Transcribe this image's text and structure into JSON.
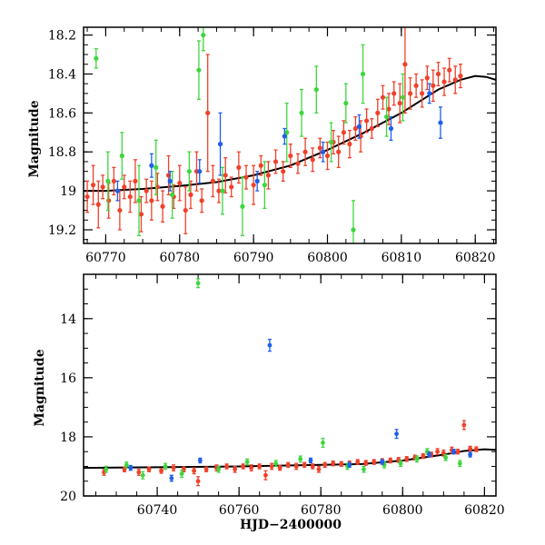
{
  "chart_data": [
    {
      "type": "scatter",
      "panel": "top",
      "xlabel": "",
      "ylabel": "Magnitude",
      "xlim": [
        60767,
        60822.8
      ],
      "ylim": [
        19.27,
        18.16
      ],
      "y_inverted": true,
      "xticks": [
        60770,
        60780,
        60790,
        60800,
        60810,
        60820
      ],
      "yticks": [
        18.2,
        18.4,
        18.6,
        18.8,
        19,
        19.2
      ],
      "ytick_labels": [
        "18.2",
        "18.4",
        "18.6",
        "18.8",
        "19",
        "19.2"
      ],
      "colors": {
        "red": "#f0402a",
        "green": "#3ed63e",
        "blue": "#1f5fe8",
        "curve": "#000000"
      },
      "series": [
        {
          "color_key": "red",
          "points": [
            [
              60767.5,
              19.03,
              0.08
            ],
            [
              60768.3,
              18.97,
              0.1
            ],
            [
              60769.0,
              19.07,
              0.12
            ],
            [
              60769.6,
              18.98,
              0.06
            ],
            [
              60770.4,
              19.05,
              0.09
            ],
            [
              60771.1,
              18.95,
              0.07
            ],
            [
              60771.9,
              19.1,
              0.1
            ],
            [
              60772.5,
              18.98,
              0.06
            ],
            [
              60773.3,
              19.03,
              0.08
            ],
            [
              60774.0,
              18.95,
              0.11
            ],
            [
              60774.8,
              19.12,
              0.09
            ],
            [
              60775.5,
              19.0,
              0.06
            ],
            [
              60776.2,
              19.05,
              0.1
            ],
            [
              60777.0,
              18.98,
              0.07
            ],
            [
              60777.7,
              19.08,
              0.08
            ],
            [
              60778.5,
              18.92,
              0.1
            ],
            [
              60779.2,
              19.03,
              0.06
            ],
            [
              60780.0,
              18.96,
              0.09
            ],
            [
              60780.8,
              19.1,
              0.12
            ],
            [
              60781.5,
              19.02,
              0.07
            ],
            [
              60782.3,
              18.9,
              0.1
            ],
            [
              60783.0,
              19.05,
              0.06
            ],
            [
              60783.8,
              18.6,
              0.3
            ],
            [
              60784.5,
              18.95,
              0.08
            ],
            [
              60785.3,
              19.0,
              0.06
            ],
            [
              60786.2,
              18.92,
              0.09
            ],
            [
              60787.0,
              18.98,
              0.05
            ],
            [
              60788.0,
              18.88,
              0.08
            ],
            [
              60789.0,
              18.93,
              0.06
            ],
            [
              60790.0,
              18.97,
              0.1
            ],
            [
              60791.0,
              18.87,
              0.05
            ],
            [
              60792.0,
              18.92,
              0.07
            ],
            [
              60793.0,
              18.85,
              0.06
            ],
            [
              60794.0,
              18.9,
              0.05
            ],
            [
              60795.0,
              18.82,
              0.06
            ],
            [
              60796.0,
              18.86,
              0.05
            ],
            [
              60797.0,
              18.8,
              0.07
            ],
            [
              60798.0,
              18.84,
              0.06
            ],
            [
              60799.0,
              18.78,
              0.05
            ],
            [
              60800.0,
              18.82,
              0.07
            ],
            [
              60800.8,
              18.75,
              0.06
            ],
            [
              60801.5,
              18.8,
              0.08
            ],
            [
              60802.2,
              18.7,
              0.06
            ],
            [
              60803.0,
              18.76,
              0.07
            ],
            [
              60803.8,
              18.68,
              0.06
            ],
            [
              60804.5,
              18.72,
              0.08
            ],
            [
              60805.3,
              18.64,
              0.06
            ],
            [
              60806.0,
              18.68,
              0.05
            ],
            [
              60806.8,
              18.6,
              0.07
            ],
            [
              60807.5,
              18.52,
              0.06
            ],
            [
              60808.3,
              18.58,
              0.08
            ],
            [
              60809.0,
              18.5,
              0.06
            ],
            [
              60809.8,
              18.55,
              0.1
            ],
            [
              60810.5,
              18.35,
              0.25
            ],
            [
              60811.2,
              18.5,
              0.08
            ],
            [
              60812.0,
              18.46,
              0.06
            ],
            [
              60812.8,
              18.5,
              0.07
            ],
            [
              60813.5,
              18.42,
              0.06
            ],
            [
              60814.3,
              18.46,
              0.08
            ],
            [
              60815.0,
              18.4,
              0.06
            ],
            [
              60815.8,
              18.44,
              0.07
            ],
            [
              60816.5,
              18.38,
              0.06
            ],
            [
              60817.3,
              18.43,
              0.07
            ],
            [
              60818.0,
              18.41,
              0.06
            ]
          ]
        },
        {
          "color_key": "green",
          "points": [
            [
              60768.7,
              18.32,
              0.05
            ],
            [
              60770.3,
              18.95,
              0.15
            ],
            [
              60772.2,
              18.82,
              0.12
            ],
            [
              60774.5,
              19.05,
              0.18
            ],
            [
              60776.8,
              18.88,
              0.14
            ],
            [
              60779.0,
              19.02,
              0.12
            ],
            [
              60781.3,
              18.9,
              0.1
            ],
            [
              60782.6,
              18.38,
              0.15
            ],
            [
              60783.2,
              18.2,
              0.08
            ],
            [
              60785.8,
              19.0,
              0.12
            ],
            [
              60788.5,
              19.08,
              0.15
            ],
            [
              60791.5,
              18.97,
              0.12
            ],
            [
              60794.5,
              18.7,
              0.15
            ],
            [
              60796.5,
              18.6,
              0.12
            ],
            [
              60798.5,
              18.48,
              0.12
            ],
            [
              60800.5,
              18.75,
              0.1
            ],
            [
              60802.5,
              18.55,
              0.1
            ],
            [
              60803.5,
              19.2,
              0.15
            ],
            [
              60804.8,
              18.4,
              0.15
            ],
            [
              60808.0,
              18.62,
              0.1
            ],
            [
              60810.2,
              18.52,
              0.12
            ]
          ]
        },
        {
          "color_key": "blue",
          "points": [
            [
              60771.6,
              19.0,
              0.05
            ],
            [
              60776.2,
              18.87,
              0.06
            ],
            [
              60778.7,
              18.95,
              0.05
            ],
            [
              60782.7,
              18.9,
              0.06
            ],
            [
              60785.5,
              18.76,
              0.16
            ],
            [
              60790.5,
              18.95,
              0.05
            ],
            [
              60794.2,
              18.72,
              0.04
            ],
            [
              60799.4,
              18.8,
              0.05
            ],
            [
              60804.3,
              18.67,
              0.06
            ],
            [
              60808.6,
              18.68,
              0.06
            ],
            [
              60813.8,
              18.5,
              0.05
            ],
            [
              60815.3,
              18.65,
              0.08
            ]
          ]
        }
      ],
      "curve": [
        [
          60767,
          19.0
        ],
        [
          60770,
          19.0
        ],
        [
          60775,
          18.99
        ],
        [
          60780,
          18.975
        ],
        [
          60785,
          18.955
        ],
        [
          60790,
          18.92
        ],
        [
          60795,
          18.87
        ],
        [
          60800,
          18.79
        ],
        [
          60805,
          18.7
        ],
        [
          60810,
          18.6
        ],
        [
          60815,
          18.48
        ],
        [
          60818,
          18.43
        ],
        [
          60820,
          18.41
        ],
        [
          60821.5,
          18.415
        ],
        [
          60822.8,
          18.43
        ]
      ]
    },
    {
      "type": "scatter",
      "panel": "bottom",
      "xlabel": "HJD−2400000",
      "ylabel": "Magnitude",
      "xlim": [
        60722,
        60822.8
      ],
      "ylim": [
        20,
        12.5
      ],
      "y_inverted": true,
      "xticks": [
        60740,
        60760,
        60780,
        60800,
        60820
      ],
      "yticks": [
        14,
        16,
        18,
        20
      ],
      "ytick_labels": [
        "14",
        "16",
        "18",
        "20"
      ],
      "colors": {
        "red": "#f0402a",
        "green": "#3ed63e",
        "blue": "#1f5fe8",
        "curve": "#000000"
      },
      "series": [
        {
          "color_key": "red",
          "points": [
            [
              60727.0,
              19.2,
              0.1
            ],
            [
              60732.0,
              19.1,
              0.08
            ],
            [
              60735.5,
              19.2,
              0.1
            ],
            [
              60738.0,
              19.1,
              0.08
            ],
            [
              60741.0,
              19.15,
              0.08
            ],
            [
              60744.0,
              19.05,
              0.1
            ],
            [
              60746.5,
              19.1,
              0.08
            ],
            [
              60749.0,
              19.15,
              0.1
            ],
            [
              60750.0,
              19.5,
              0.15
            ],
            [
              60752.0,
              19.1,
              0.08
            ],
            [
              60754.5,
              19.05,
              0.1
            ],
            [
              60757.0,
              19.0,
              0.08
            ],
            [
              60759.0,
              19.1,
              0.1
            ],
            [
              60761.0,
              19.0,
              0.08
            ],
            [
              60763.0,
              19.05,
              0.1
            ],
            [
              60765.0,
              19.0,
              0.08
            ],
            [
              60766.5,
              19.3,
              0.15
            ],
            [
              60768.0,
              19.0,
              0.1
            ],
            [
              60770.0,
              19.05,
              0.08
            ],
            [
              60772.0,
              18.95,
              0.08
            ],
            [
              60774.0,
              19.0,
              0.1
            ],
            [
              60776.0,
              18.95,
              0.08
            ],
            [
              60778.0,
              19.0,
              0.08
            ],
            [
              60779.5,
              19.1,
              0.1
            ],
            [
              60781.0,
              18.95,
              0.08
            ],
            [
              60783.0,
              18.9,
              0.08
            ],
            [
              60785.0,
              18.92,
              0.08
            ],
            [
              60787.0,
              18.9,
              0.08
            ],
            [
              60789.0,
              18.85,
              0.08
            ],
            [
              60791.0,
              18.88,
              0.08
            ],
            [
              60793.0,
              18.85,
              0.08
            ],
            [
              60795.0,
              18.82,
              0.08
            ],
            [
              60797.0,
              18.8,
              0.08
            ],
            [
              60799.0,
              18.78,
              0.08
            ],
            [
              60801.0,
              18.75,
              0.08
            ],
            [
              60803.0,
              18.7,
              0.08
            ],
            [
              60805.0,
              18.65,
              0.08
            ],
            [
              60807.0,
              18.6,
              0.08
            ],
            [
              60808.5,
              18.5,
              0.1
            ],
            [
              60810.0,
              18.55,
              0.1
            ],
            [
              60812.0,
              18.45,
              0.1
            ],
            [
              60813.5,
              18.5,
              0.08
            ],
            [
              60815.0,
              17.6,
              0.15
            ],
            [
              60816.5,
              18.4,
              0.08
            ],
            [
              60818.0,
              18.42,
              0.08
            ]
          ]
        },
        {
          "color_key": "green",
          "points": [
            [
              60727.5,
              19.1,
              0.1
            ],
            [
              60732.5,
              18.95,
              0.1
            ],
            [
              60736.5,
              19.3,
              0.12
            ],
            [
              60742.0,
              19.0,
              0.1
            ],
            [
              60746.0,
              19.25,
              0.12
            ],
            [
              60750.0,
              12.8,
              0.15
            ],
            [
              60755.0,
              19.1,
              0.1
            ],
            [
              60762.0,
              18.85,
              0.1
            ],
            [
              60769.0,
              18.9,
              0.1
            ],
            [
              60775.0,
              18.75,
              0.1
            ],
            [
              60780.5,
              18.2,
              0.15
            ],
            [
              60786.5,
              19.0,
              0.1
            ],
            [
              60790.5,
              19.1,
              0.1
            ],
            [
              60795.5,
              18.95,
              0.1
            ],
            [
              60799.5,
              18.9,
              0.1
            ],
            [
              60803.5,
              18.75,
              0.1
            ],
            [
              60806.0,
              18.5,
              0.1
            ],
            [
              60810.5,
              18.7,
              0.1
            ],
            [
              60814.0,
              18.9,
              0.1
            ]
          ]
        },
        {
          "color_key": "blue",
          "points": [
            [
              60733.5,
              19.05,
              0.08
            ],
            [
              60743.5,
              19.4,
              0.1
            ],
            [
              60750.5,
              18.8,
              0.08
            ],
            [
              60767.5,
              14.9,
              0.2
            ],
            [
              60777.5,
              18.8,
              0.08
            ],
            [
              60787.0,
              18.95,
              0.08
            ],
            [
              60795.0,
              18.85,
              0.08
            ],
            [
              60798.5,
              17.9,
              0.15
            ],
            [
              60806.5,
              18.6,
              0.08
            ],
            [
              60812.5,
              18.5,
              0.08
            ],
            [
              60816.5,
              18.6,
              0.08
            ]
          ]
        }
      ],
      "curve": [
        [
          60722,
          19.05
        ],
        [
          60740,
          19.03
        ],
        [
          60760,
          19.0
        ],
        [
          60780,
          18.95
        ],
        [
          60790,
          18.92
        ],
        [
          60800,
          18.8
        ],
        [
          60810,
          18.6
        ],
        [
          60815,
          18.48
        ],
        [
          60820,
          18.42
        ],
        [
          60822.8,
          18.44
        ]
      ]
    }
  ]
}
